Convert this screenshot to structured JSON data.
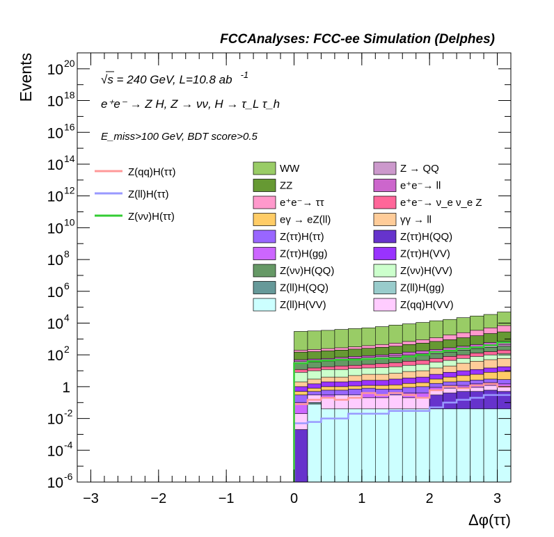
{
  "header": {
    "title": "FCCAnalyses: FCC-ee Simulation (Delphes)"
  },
  "annotations": {
    "line1_prefix": "√s = 240 GeV, L=10.8 ab",
    "line1_sup": "-1",
    "line2": "e⁺e⁻ → Z H, Z → νν, H → τ_L τ_h",
    "line3": "E_miss>100 GeV, BDT score>0.5"
  },
  "chart_data": {
    "type": "area",
    "title": "FCCAnalyses: FCC-ee Simulation (Delphes)",
    "xlabel": "Δφ(ττ)",
    "ylabel": "Events",
    "xlim": [
      -3.2,
      3.2
    ],
    "ylim": [
      1e-06,
      1e+21
    ],
    "yscale": "log",
    "xticks": [
      "−3",
      "−2",
      "−1",
      "0",
      "1",
      "2",
      "3"
    ],
    "yticks": [
      {
        "base": "10",
        "exp": "20"
      },
      {
        "base": "10",
        "exp": "18"
      },
      {
        "base": "10",
        "exp": "16"
      },
      {
        "base": "10",
        "exp": "14"
      },
      {
        "base": "10",
        "exp": "12"
      },
      {
        "base": "10",
        "exp": "10"
      },
      {
        "base": "10",
        "exp": "8"
      },
      {
        "base": "10",
        "exp": "6"
      },
      {
        "base": "10",
        "exp": "4"
      },
      {
        "base": "10",
        "exp": "2"
      },
      {
        "base": "1",
        "exp": ""
      },
      {
        "base": "10",
        "exp": "-2"
      },
      {
        "base": "10",
        "exp": "-4"
      },
      {
        "base": "10",
        "exp": "-6"
      }
    ],
    "bin_edges": [
      0.0,
      0.2,
      0.4,
      0.6,
      0.8,
      1.0,
      1.2,
      1.4,
      1.6,
      1.8,
      2.0,
      2.2,
      2.4,
      2.6,
      2.8,
      3.0,
      3.2
    ],
    "stacked_cumulative": [
      {
        "name": "Z(ll)H(VV)",
        "color": "#ccffff",
        "values": [
          1e-06,
          0.08,
          0.04,
          0.04,
          0.04,
          0.04,
          0.04,
          0.04,
          0.04,
          0.04,
          0.04,
          0.04,
          0.04,
          0.04,
          0.04,
          0.04
        ]
      },
      {
        "name": "Z(ll)H(gg)",
        "color": "#99cccc",
        "values": [
          1e-06,
          0.08,
          0.04,
          0.04,
          0.04,
          0.04,
          0.04,
          0.04,
          0.04,
          0.04,
          0.04,
          0.04,
          0.04,
          0.04,
          0.04,
          0.04
        ]
      },
      {
        "name": "Z(ll)H(QQ)",
        "color": "#669999",
        "values": [
          1e-06,
          0.1,
          0.04,
          0.04,
          0.04,
          0.04,
          0.04,
          0.04,
          0.04,
          0.04,
          0.04,
          0.04,
          0.04,
          0.04,
          0.04,
          0.04
        ]
      },
      {
        "name": "Z(ττ)H(QQ)",
        "color": "#6633cc",
        "values": [
          0.002,
          0.1,
          0.04,
          0.04,
          0.04,
          0.04,
          0.04,
          0.04,
          0.04,
          0.04,
          0.3,
          0.4,
          0.5,
          0.5,
          0.6,
          0.5
        ]
      },
      {
        "name": "Z(qq)H(VV)",
        "color": "#ffccff",
        "values": [
          0.02,
          0.3,
          0.2,
          0.3,
          0.3,
          0.2,
          0.2,
          0.3,
          0.2,
          0.2,
          0.6,
          0.8,
          0.9,
          0.9,
          1.2,
          1.0
        ]
      },
      {
        "name": "Z(ττ)H(gg)",
        "color": "#cc66ff",
        "values": [
          0.1,
          0.2,
          0.3,
          0.3,
          0.3,
          0.4,
          0.3,
          0.3,
          0.4,
          0.4,
          0.9,
          1.2,
          1.2,
          1.5,
          1.8,
          1.5
        ]
      },
      {
        "name": "Z(ττ)H(ττ)",
        "color": "#9966ff",
        "values": [
          0.3,
          0.5,
          0.6,
          0.6,
          0.7,
          0.8,
          0.7,
          0.7,
          0.9,
          1.0,
          1.6,
          2.0,
          2.2,
          2.6,
          3.0,
          2.8
        ]
      },
      {
        "name": "eγ → eZ(ll)",
        "color": "#ffcc66",
        "values": [
          0.5,
          0.8,
          1.0,
          1.0,
          1.1,
          1.2,
          1.2,
          1.3,
          1.6,
          1.8,
          3.0,
          4.0,
          5.0,
          6.0,
          8.0,
          9.0
        ]
      },
      {
        "name": "Z(ττ)H(VV)",
        "color": "#9933ff",
        "values": [
          1.0,
          1.5,
          2.0,
          2.0,
          2.2,
          2.5,
          2.5,
          3.0,
          3.5,
          4.0,
          6.0,
          8.0,
          10.0,
          12.0,
          15.0,
          18.0
        ]
      },
      {
        "name": "γγ → ll",
        "color": "#ffcc99",
        "values": [
          2.0,
          3.0,
          4.0,
          4.0,
          5.0,
          6.0,
          6.0,
          7.0,
          9.0,
          10.0,
          15.0,
          20.0,
          30.0,
          40.0,
          50.0,
          60.0
        ]
      },
      {
        "name": "Z(νν)H(VV)",
        "color": "#ccffcc",
        "values": [
          8.0,
          10.0,
          12.0,
          12.0,
          14.0,
          15.0,
          16.0,
          18.0,
          22.0,
          25.0,
          35.0,
          45.0,
          60.0,
          80.0,
          100.0,
          120.0
        ]
      },
      {
        "name": "e⁺e⁻ → ν_e ν_e Z",
        "color": "#ff6699",
        "values": [
          12.0,
          15.0,
          18.0,
          20.0,
          22.0,
          25.0,
          28.0,
          32.0,
          40.0,
          45.0,
          60.0,
          80.0,
          100.0,
          130.0,
          160.0,
          200.0
        ]
      },
      {
        "name": "Z(νν)H(QQ)",
        "color": "#669966",
        "values": [
          30.0,
          35.0,
          40.0,
          45.0,
          50.0,
          55.0,
          60.0,
          70.0,
          80.0,
          90.0,
          120.0,
          150.0,
          200.0,
          250.0,
          300.0,
          350.0
        ]
      },
      {
        "name": "Z → QQ",
        "color": "#cc99cc",
        "values": [
          40.0,
          45.0,
          50.0,
          55.0,
          60.0,
          70.0,
          80.0,
          90.0,
          100.0,
          120.0,
          150.0,
          200.0,
          250.0,
          300.0,
          400.0,
          450.0
        ]
      },
      {
        "name": "e⁺e⁻ → ll",
        "color": "#cc66cc",
        "values": [
          50.0,
          55.0,
          60.0,
          70.0,
          80.0,
          90.0,
          100.0,
          120.0,
          150.0,
          180.0,
          220.0,
          280.0,
          350.0,
          450.0,
          600.0,
          700.0
        ]
      },
      {
        "name": "ZZ",
        "color": "#669933",
        "values": [
          150.0,
          160.0,
          180.0,
          200.0,
          230.0,
          260.0,
          300.0,
          350.0,
          450.0,
          550.0,
          700.0,
          900.0,
          1200.0,
          1600.0,
          2200.0,
          2800.0
        ]
      },
      {
        "name": "e⁺e⁻ → ττ",
        "color": "#ff99cc",
        "values": [
          200.0,
          220.0,
          250.0,
          280.0,
          320.0,
          380.0,
          450.0,
          550.0,
          700.0,
          900.0,
          1200.0,
          1800.0,
          2500.0,
          3500.0,
          5000.0,
          7000.0
        ]
      },
      {
        "name": "WW",
        "color": "#99cc66",
        "values": [
          3000.0,
          3200.0,
          3500.0,
          4000.0,
          4500.0,
          5000.0,
          6000.0,
          7500.0,
          9000.0,
          11000.0,
          14000.0,
          17000.0,
          22000.0,
          28000.0,
          35000.0,
          50000.0
        ]
      }
    ],
    "signal_lines": [
      {
        "name": "Z(qq)H(ττ)",
        "color": "#ff9999",
        "values": [
          0.08,
          0.15,
          0.2,
          0.15,
          0.2,
          0.4,
          0.3,
          0.4,
          0.3,
          0.2,
          0.6,
          1.0,
          0.8,
          1.2,
          1.5,
          1.0
        ]
      },
      {
        "name": "Z(ll)H(ττ)",
        "color": "#9999ff",
        "values": [
          0.005,
          0.006,
          0.01,
          0.01,
          0.02,
          0.02,
          0.02,
          0.03,
          0.03,
          0.03,
          0.05,
          0.1,
          0.15,
          0.2,
          0.3,
          0.3
        ]
      },
      {
        "name": "Z(νν)H(ττ)",
        "color": "#33cc33",
        "values": [
          30.0,
          40.0,
          45.0,
          50.0,
          50.0,
          55.0,
          60.0,
          60.0,
          80.0,
          100.0,
          150.0,
          180.0,
          250.0,
          300.0,
          400.0,
          600.0
        ]
      }
    ],
    "legend_signal": [
      {
        "label": "Z(qq)H(ττ)",
        "color": "#ff9999"
      },
      {
        "label": "Z(ll)H(ττ)",
        "color": "#9999ff"
      },
      {
        "label": "Z(νν)H(ττ)",
        "color": "#33cc33"
      }
    ],
    "legend_background": [
      {
        "label": "WW",
        "color": "#99cc66"
      },
      {
        "label": "Z → QQ",
        "color": "#cc99cc"
      },
      {
        "label": "ZZ",
        "color": "#669933"
      },
      {
        "label": "e⁺e⁻→ ll",
        "color": "#cc66cc"
      },
      {
        "label": "e⁺e⁻→ ττ",
        "color": "#ff99cc"
      },
      {
        "label": "e⁺e⁻→ ν_e ν_e Z",
        "color": "#ff6699"
      },
      {
        "label": "eγ → eZ(ll)",
        "color": "#ffcc66"
      },
      {
        "label": "γγ → ll",
        "color": "#ffcc99"
      },
      {
        "label": "Z(ττ)H(ττ)",
        "color": "#9966ff"
      },
      {
        "label": "Z(ττ)H(QQ)",
        "color": "#6633cc"
      },
      {
        "label": "Z(ττ)H(gg)",
        "color": "#cc66ff"
      },
      {
        "label": "Z(ττ)H(VV)",
        "color": "#9933ff"
      },
      {
        "label": "Z(νν)H(QQ)",
        "color": "#669966"
      },
      {
        "label": "Z(νν)H(VV)",
        "color": "#ccffcc"
      },
      {
        "label": "Z(ll)H(QQ)",
        "color": "#669999"
      },
      {
        "label": "Z(ll)H(gg)",
        "color": "#99cccc"
      },
      {
        "label": "Z(ll)H(VV)",
        "color": "#ccffff"
      },
      {
        "label": "Z(qq)H(VV)",
        "color": "#ffccff"
      }
    ]
  }
}
